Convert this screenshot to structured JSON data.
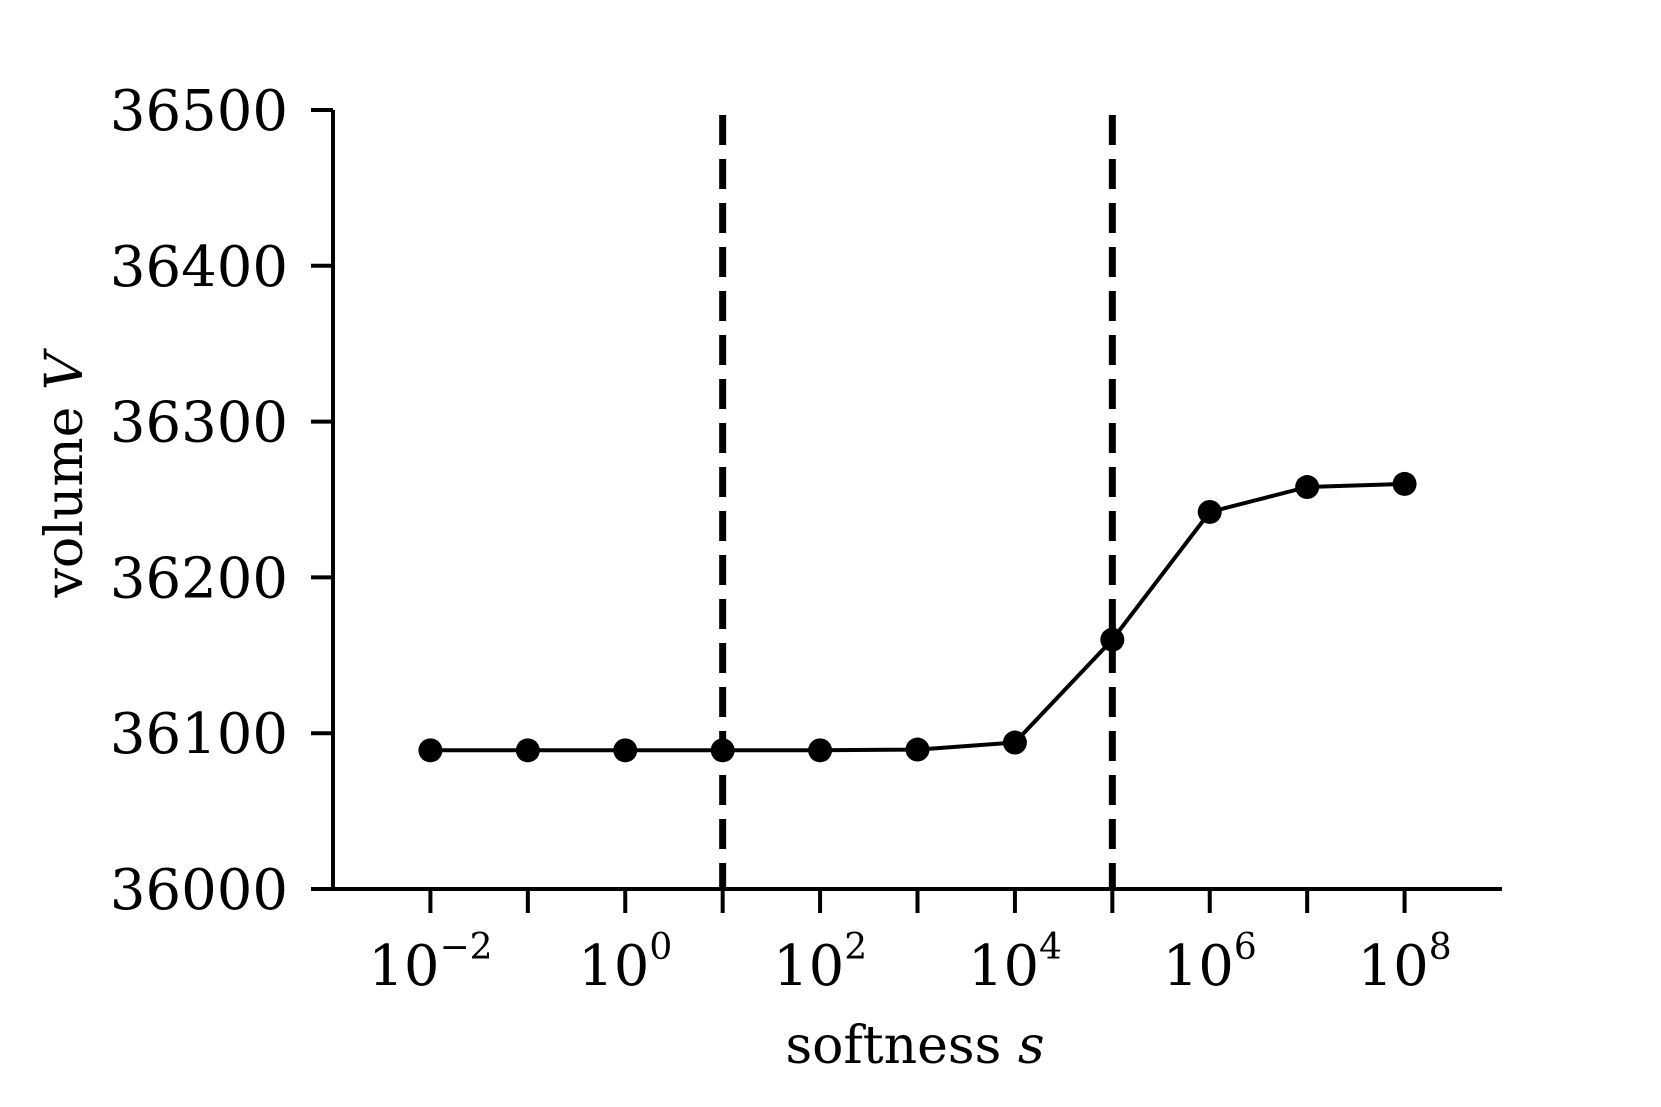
{
  "chart_data": {
    "type": "line",
    "title": "",
    "xlabel": "softness",
    "xlabel_var": "s",
    "ylabel": "volume",
    "ylabel_var": "V",
    "x_scale": "log",
    "xlim": [
      0.001,
      1000000000
    ],
    "ylim": [
      36000,
      36500
    ],
    "y_ticks": [
      "36000",
      "36100",
      "36200",
      "36300",
      "36400",
      "36500"
    ],
    "x_ticks_labeled": [
      {
        "base": "10",
        "exp": "−2",
        "value": 0.01
      },
      {
        "base": "10",
        "exp": "0",
        "value": 1
      },
      {
        "base": "10",
        "exp": "2",
        "value": 100
      },
      {
        "base": "10",
        "exp": "4",
        "value": 10000
      },
      {
        "base": "10",
        "exp": "6",
        "value": 1000000
      },
      {
        "base": "10",
        "exp": "8",
        "value": 100000000
      }
    ],
    "x_ticks_minor": [
      0.1,
      10,
      1000,
      100000,
      10000000
    ],
    "vlines": [
      10,
      100000
    ],
    "vline_style": "dashed",
    "grid": false,
    "color": "#000000",
    "series": [
      {
        "x": [
          0.01,
          0.1,
          1,
          10,
          100,
          1000,
          10000,
          100000,
          1000000,
          10000000,
          100000000
        ],
        "y": [
          36089,
          36089,
          36089,
          36089,
          36089,
          36089.5,
          36094,
          36160,
          36242,
          36258,
          36260
        ]
      }
    ]
  }
}
